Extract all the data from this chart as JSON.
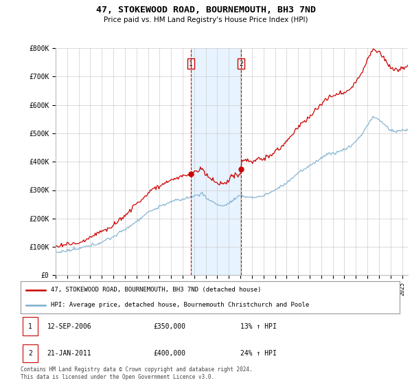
{
  "title": "47, STOKEWOOD ROAD, BOURNEMOUTH, BH3 7ND",
  "subtitle": "Price paid vs. HM Land Registry's House Price Index (HPI)",
  "ylim": [
    0,
    800000
  ],
  "xlim_start": 1995,
  "xlim_end": 2025,
  "red_color": "#cc0000",
  "blue_color": "#7aadcc",
  "shade_color": "#ddeeff",
  "transaction1_x": 2006.72,
  "transaction2_x": 2011.05,
  "transaction1_price": 350000,
  "transaction2_price": 400000,
  "legend_line1": "47, STOKEWOOD ROAD, BOURNEMOUTH, BH3 7ND (detached house)",
  "legend_line2": "HPI: Average price, detached house, Bournemouth Christchurch and Poole",
  "t1_date": "12-SEP-2006",
  "t1_price_str": "£350,000",
  "t1_hpi": "13% ↑ HPI",
  "t2_date": "21-JAN-2011",
  "t2_price_str": "£400,000",
  "t2_hpi": "24% ↑ HPI",
  "footnote": "Contains HM Land Registry data © Crown copyright and database right 2024.\nThis data is licensed under the Open Government Licence v3.0."
}
